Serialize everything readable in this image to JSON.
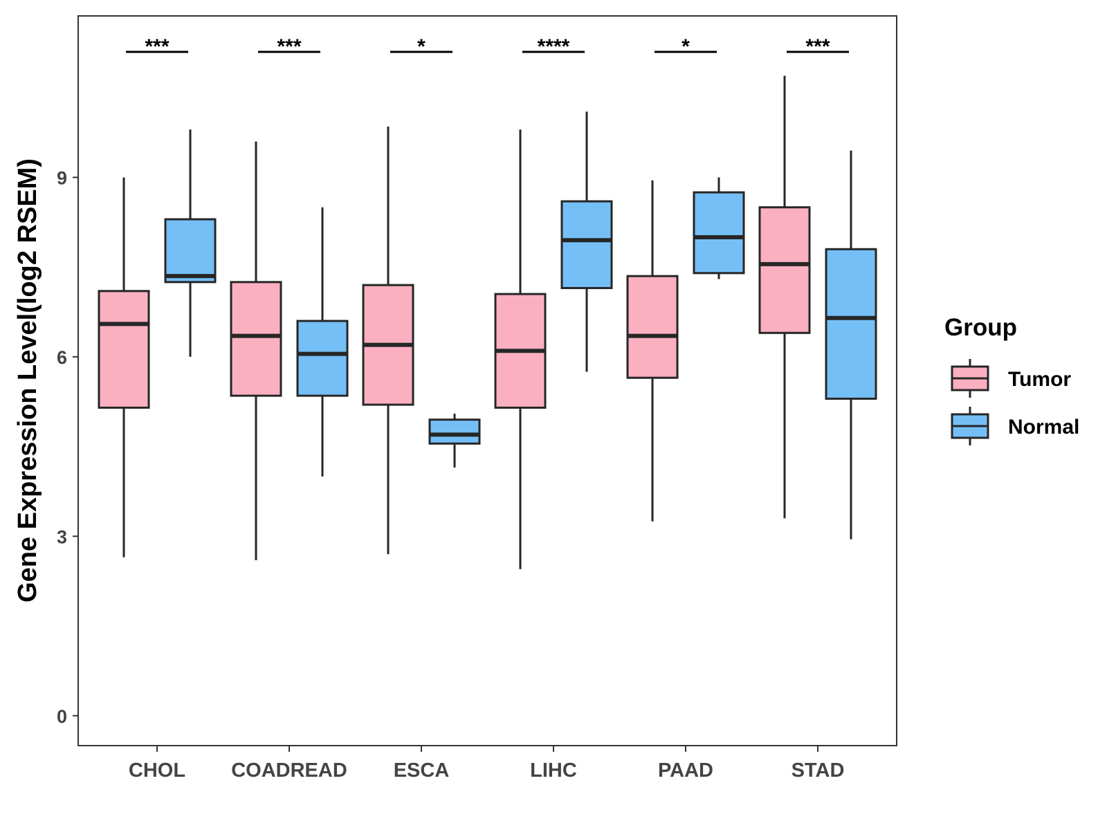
{
  "chart_data": {
    "type": "boxplot",
    "title": "",
    "xlabel": "",
    "ylabel": "Gene Expression Level(log2 RSEM)",
    "ylim": [
      -0.5,
      11.7
    ],
    "yticks": [
      0,
      3,
      6,
      9
    ],
    "grid": false,
    "legend": {
      "title": "Group",
      "position": "right",
      "items": [
        {
          "name": "Tumor",
          "color": "#FAB0C0"
        },
        {
          "name": "Normal",
          "color": "#75BFF7"
        }
      ]
    },
    "categories": [
      "CHOL",
      "COADREAD",
      "ESCA",
      "LIHC",
      "PAAD",
      "STAD"
    ],
    "significance": [
      "***",
      "***",
      "*",
      "****",
      "*",
      "***"
    ],
    "series": [
      {
        "name": "Tumor",
        "color": "#FAB0C0",
        "boxes": [
          {
            "min": 2.65,
            "q1": 5.15,
            "median": 6.55,
            "q3": 7.1,
            "max": 9.0
          },
          {
            "min": 2.6,
            "q1": 5.35,
            "median": 6.35,
            "q3": 7.25,
            "max": 9.6
          },
          {
            "min": 2.7,
            "q1": 5.2,
            "median": 6.2,
            "q3": 7.2,
            "max": 9.85
          },
          {
            "min": 2.45,
            "q1": 5.15,
            "median": 6.1,
            "q3": 7.05,
            "max": 9.8
          },
          {
            "min": 3.25,
            "q1": 5.65,
            "median": 6.35,
            "q3": 7.35,
            "max": 8.95
          },
          {
            "min": 3.3,
            "q1": 6.4,
            "median": 7.55,
            "q3": 8.5,
            "max": 10.7
          }
        ]
      },
      {
        "name": "Normal",
        "color": "#75BFF7",
        "boxes": [
          {
            "min": 6.0,
            "q1": 7.25,
            "median": 7.35,
            "q3": 8.3,
            "max": 9.8
          },
          {
            "min": 4.0,
            "q1": 5.35,
            "median": 6.05,
            "q3": 6.6,
            "max": 8.5
          },
          {
            "min": 4.15,
            "q1": 4.55,
            "median": 4.7,
            "q3": 4.95,
            "max": 5.05
          },
          {
            "min": 5.75,
            "q1": 7.15,
            "median": 7.95,
            "q3": 8.6,
            "max": 10.1
          },
          {
            "min": 7.3,
            "q1": 7.4,
            "median": 8.0,
            "q3": 8.75,
            "max": 9.0
          },
          {
            "min": 2.95,
            "q1": 5.3,
            "median": 6.65,
            "q3": 7.8,
            "max": 9.45
          }
        ]
      }
    ]
  }
}
